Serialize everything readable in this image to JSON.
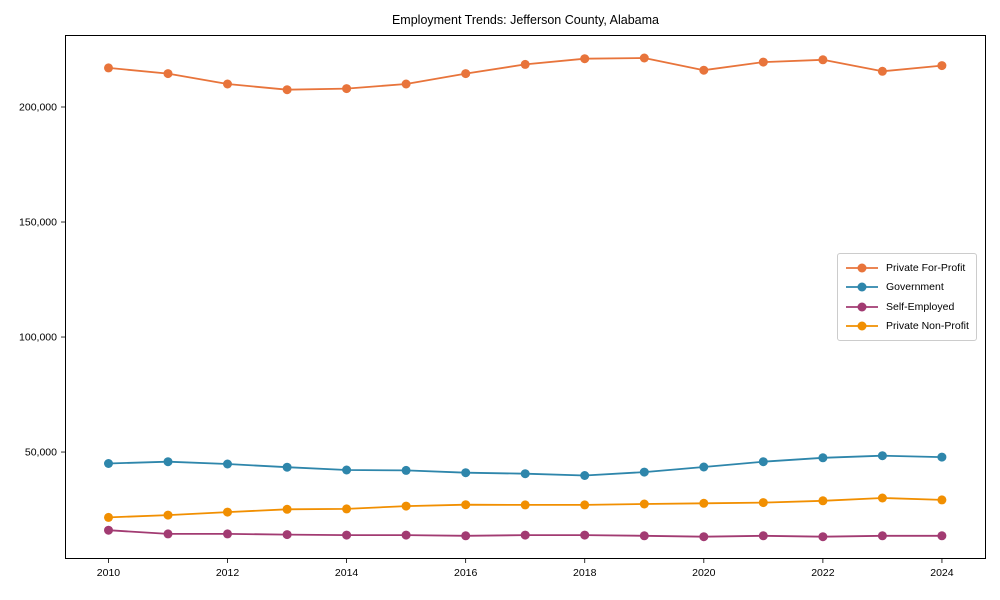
{
  "chart_data": {
    "type": "line",
    "title": "Employment Trends: Jefferson County, Alabama",
    "xlabel": "",
    "ylabel": "",
    "grid": false,
    "legend_position": "center-right",
    "marker": "circle",
    "x": [
      2010,
      2011,
      2012,
      2013,
      2014,
      2015,
      2016,
      2017,
      2018,
      2019,
      2020,
      2021,
      2022,
      2023,
      2024
    ],
    "series": [
      {
        "name": "Private For-Profit",
        "color": "#E8743B",
        "values": [
          217000,
          214500,
          210000,
          207500,
          208000,
          210000,
          214500,
          218500,
          221000,
          221300,
          216000,
          219500,
          220500,
          215500,
          218000
        ]
      },
      {
        "name": "Government",
        "color": "#2E86AB",
        "values": [
          45000,
          45800,
          44800,
          43400,
          42200,
          42000,
          41000,
          40600,
          39800,
          41300,
          43500,
          45800,
          47500,
          48400,
          47800
        ]
      },
      {
        "name": "Self-Employed",
        "color": "#A23B72",
        "values": [
          16000,
          14400,
          14400,
          14100,
          13900,
          13900,
          13600,
          13900,
          13900,
          13600,
          13200,
          13600,
          13200,
          13600,
          13600
        ]
      },
      {
        "name": "Private Non-Profit",
        "color": "#F18F01",
        "values": [
          21600,
          22600,
          23900,
          25100,
          25300,
          26500,
          27100,
          27000,
          27000,
          27400,
          27700,
          28000,
          28800,
          30000,
          29200
        ]
      }
    ],
    "xticks": {
      "values": [
        2010,
        2012,
        2014,
        2016,
        2018,
        2020,
        2022,
        2024
      ],
      "labels": [
        "2010",
        "2012",
        "2014",
        "2016",
        "2018",
        "2020",
        "2022",
        "2024"
      ]
    },
    "yticks": {
      "values": [
        50000,
        100000,
        150000,
        200000
      ],
      "labels": [
        "50,000",
        "100,000",
        "150,000",
        "200,000"
      ]
    },
    "xlim": [
      2009.27,
      2024.74
    ],
    "ylim": [
      3500,
      231300
    ]
  }
}
